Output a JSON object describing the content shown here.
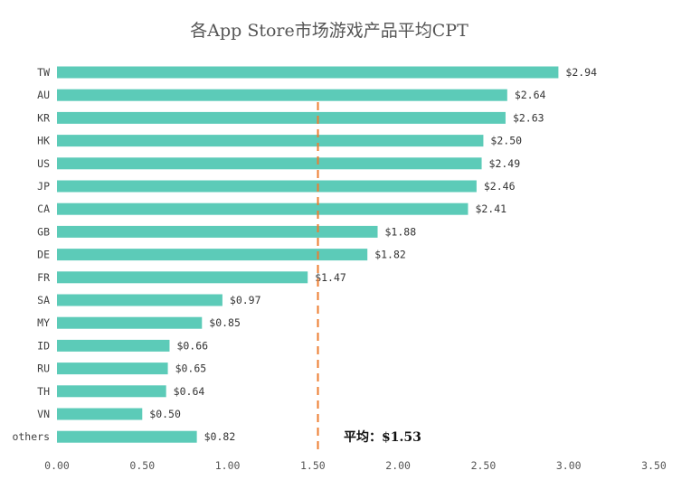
{
  "chart_data": {
    "type": "bar",
    "orientation": "horizontal",
    "title": "各App Store市场游戏产品平均CPT",
    "categories": [
      "TW",
      "AU",
      "KR",
      "HK",
      "US",
      "JP",
      "CA",
      "GB",
      "DE",
      "FR",
      "SA",
      "MY",
      "ID",
      "RU",
      "TH",
      "VN",
      "others"
    ],
    "values": [
      2.94,
      2.64,
      2.63,
      2.5,
      2.49,
      2.46,
      2.41,
      1.88,
      1.82,
      1.47,
      0.97,
      0.85,
      0.66,
      0.65,
      0.64,
      0.5,
      0.82
    ],
    "value_labels": [
      "$2.94",
      "$2.64",
      "$2.63",
      "$2.50",
      "$2.49",
      "$2.46",
      "$2.41",
      "$1.88",
      "$1.82",
      "$1.47",
      "$0.97",
      "$0.85",
      "$0.66",
      "$0.65",
      "$0.64",
      "$0.50",
      "$0.82"
    ],
    "xlim": [
      0,
      3.5
    ],
    "x_ticks": [
      "0.00",
      "0.50",
      "1.00",
      "1.50",
      "2.00",
      "2.50",
      "3.00",
      "3.50"
    ],
    "average": {
      "value": 1.53,
      "label": "平均：$1.53"
    },
    "grid": false,
    "colors": {
      "bar": "#5ccbb8",
      "average_line": "#ed7d31"
    }
  }
}
